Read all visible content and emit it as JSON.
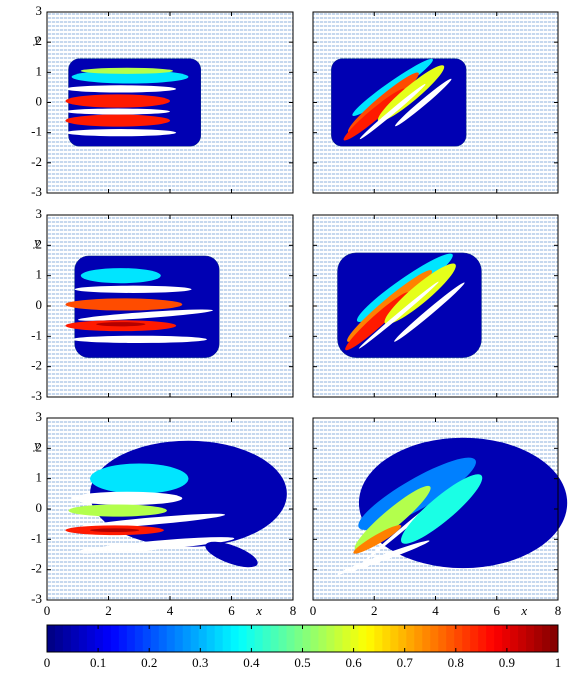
{
  "axes": {
    "xlim": [
      0,
      8
    ],
    "ylim": [
      -3,
      3
    ],
    "xticks": [
      0,
      2,
      4,
      6,
      8
    ],
    "yticks": [
      -3,
      -2,
      -1,
      0,
      1,
      2,
      3
    ],
    "x_label": "x",
    "y_label": "y"
  },
  "colorbar": {
    "lim": [
      0,
      1
    ],
    "colormap": "jet",
    "ticks": [
      0,
      0.1,
      0.2,
      0.3,
      0.4,
      0.5,
      0.6,
      0.7,
      0.8,
      0.9,
      1
    ]
  }
}
